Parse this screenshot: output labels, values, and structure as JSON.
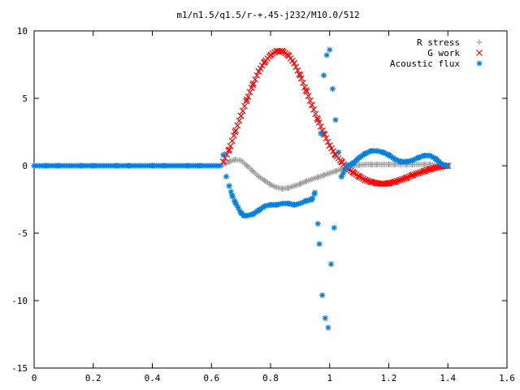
{
  "chart_data": {
    "type": "scatter",
    "title": "m1/n1.5/q1.5/r-+.45-j232/M10.0/512",
    "xlabel": "",
    "ylabel": "",
    "xlim": [
      0,
      1.6
    ],
    "ylim": [
      -15,
      10
    ],
    "x_ticks": [
      "0",
      "0.2",
      "0.4",
      "0.6",
      "0.8",
      "1",
      "1.2",
      "1.4",
      "1.6"
    ],
    "y_ticks": [
      "10",
      "5",
      "0",
      "-5",
      "-10",
      "-15"
    ],
    "grid": false,
    "legend_position": "top-right",
    "series": [
      {
        "name": "R stress",
        "marker": "+",
        "color": "#a0a0a0",
        "x": [
          0.64,
          0.66,
          0.68,
          0.7,
          0.72,
          0.74,
          0.76,
          0.78,
          0.8,
          0.82,
          0.84,
          0.86,
          0.88,
          0.9,
          0.92,
          0.94,
          0.96,
          0.98,
          1.0,
          1.02,
          1.04,
          1.06,
          1.08,
          1.1,
          1.12,
          1.14,
          1.16,
          1.18,
          1.2,
          1.22,
          1.24,
          1.26,
          1.28,
          1.3,
          1.32,
          1.34,
          1.36,
          1.38,
          1.4
        ],
        "y": [
          0.1,
          0.3,
          0.45,
          0.4,
          0.0,
          -0.4,
          -0.8,
          -1.1,
          -1.4,
          -1.6,
          -1.7,
          -1.65,
          -1.5,
          -1.35,
          -1.15,
          -1.0,
          -0.85,
          -0.7,
          -0.55,
          -0.4,
          -0.25,
          -0.1,
          0.0,
          0.05,
          0.1,
          0.1,
          0.1,
          0.1,
          0.1,
          0.1,
          0.1,
          0.1,
          0.1,
          0.1,
          0.1,
          0.1,
          0.05,
          0.0,
          0.0
        ]
      },
      {
        "name": "G work",
        "marker": "x",
        "color": "#ff0000",
        "x": [
          0.64,
          0.66,
          0.68,
          0.7,
          0.72,
          0.74,
          0.76,
          0.78,
          0.8,
          0.82,
          0.84,
          0.86,
          0.88,
          0.9,
          0.92,
          0.94,
          0.96,
          0.98,
          1.0,
          1.02,
          1.04,
          1.06,
          1.08,
          1.1,
          1.12,
          1.14,
          1.16,
          1.18,
          1.2,
          1.22,
          1.24,
          1.26,
          1.28,
          1.3,
          1.32,
          1.34,
          1.36,
          1.38,
          1.4
        ],
        "y": [
          0.3,
          1.2,
          2.5,
          3.7,
          4.9,
          6.0,
          7.0,
          7.7,
          8.2,
          8.5,
          8.5,
          8.2,
          7.6,
          6.7,
          5.6,
          4.5,
          3.4,
          2.4,
          1.5,
          0.8,
          0.3,
          -0.2,
          -0.5,
          -0.8,
          -1.05,
          -1.2,
          -1.3,
          -1.35,
          -1.3,
          -1.2,
          -1.05,
          -0.9,
          -0.7,
          -0.55,
          -0.4,
          -0.25,
          -0.15,
          -0.05,
          0.0
        ]
      },
      {
        "name": "Acoustic flux",
        "marker": "*",
        "color": "#0080e0",
        "x": [
          0.0,
          0.04,
          0.08,
          0.12,
          0.16,
          0.2,
          0.24,
          0.28,
          0.32,
          0.36,
          0.4,
          0.44,
          0.48,
          0.52,
          0.56,
          0.6,
          0.63,
          0.64,
          0.65,
          0.66,
          0.67,
          0.68,
          0.69,
          0.7,
          0.71,
          0.72,
          0.74,
          0.76,
          0.78,
          0.8,
          0.82,
          0.84,
          0.86,
          0.88,
          0.9,
          0.92,
          0.94,
          0.95,
          0.96,
          0.965,
          0.97,
          0.975,
          0.98,
          0.985,
          0.99,
          0.995,
          1.0,
          1.005,
          1.01,
          1.015,
          1.02,
          1.03,
          1.04,
          1.06,
          1.08,
          1.1,
          1.12,
          1.14,
          1.16,
          1.18,
          1.2,
          1.22,
          1.24,
          1.26,
          1.28,
          1.3,
          1.32,
          1.34,
          1.36,
          1.38,
          1.4
        ],
        "y": [
          0.0,
          0.0,
          0.0,
          0.0,
          0.0,
          0.0,
          0.0,
          0.0,
          0.0,
          0.0,
          0.0,
          0.0,
          0.0,
          0.0,
          0.0,
          0.0,
          0.0,
          0.8,
          -0.8,
          -1.5,
          -2.2,
          -2.7,
          -3.1,
          -3.5,
          -3.7,
          -3.7,
          -3.6,
          -3.3,
          -3.0,
          -2.9,
          -2.9,
          -2.8,
          -2.8,
          -2.9,
          -2.8,
          -2.6,
          -2.5,
          -2.0,
          -4.3,
          -5.8,
          2.4,
          -9.6,
          6.7,
          -11.3,
          8.2,
          -12.0,
          8.6,
          -7.3,
          5.7,
          -4.6,
          3.4,
          1.0,
          -0.8,
          0.0,
          0.2,
          0.6,
          0.9,
          1.1,
          1.1,
          1.0,
          0.8,
          0.5,
          0.3,
          0.3,
          0.4,
          0.6,
          0.75,
          0.75,
          0.5,
          0.1,
          0.0
        ]
      }
    ]
  }
}
